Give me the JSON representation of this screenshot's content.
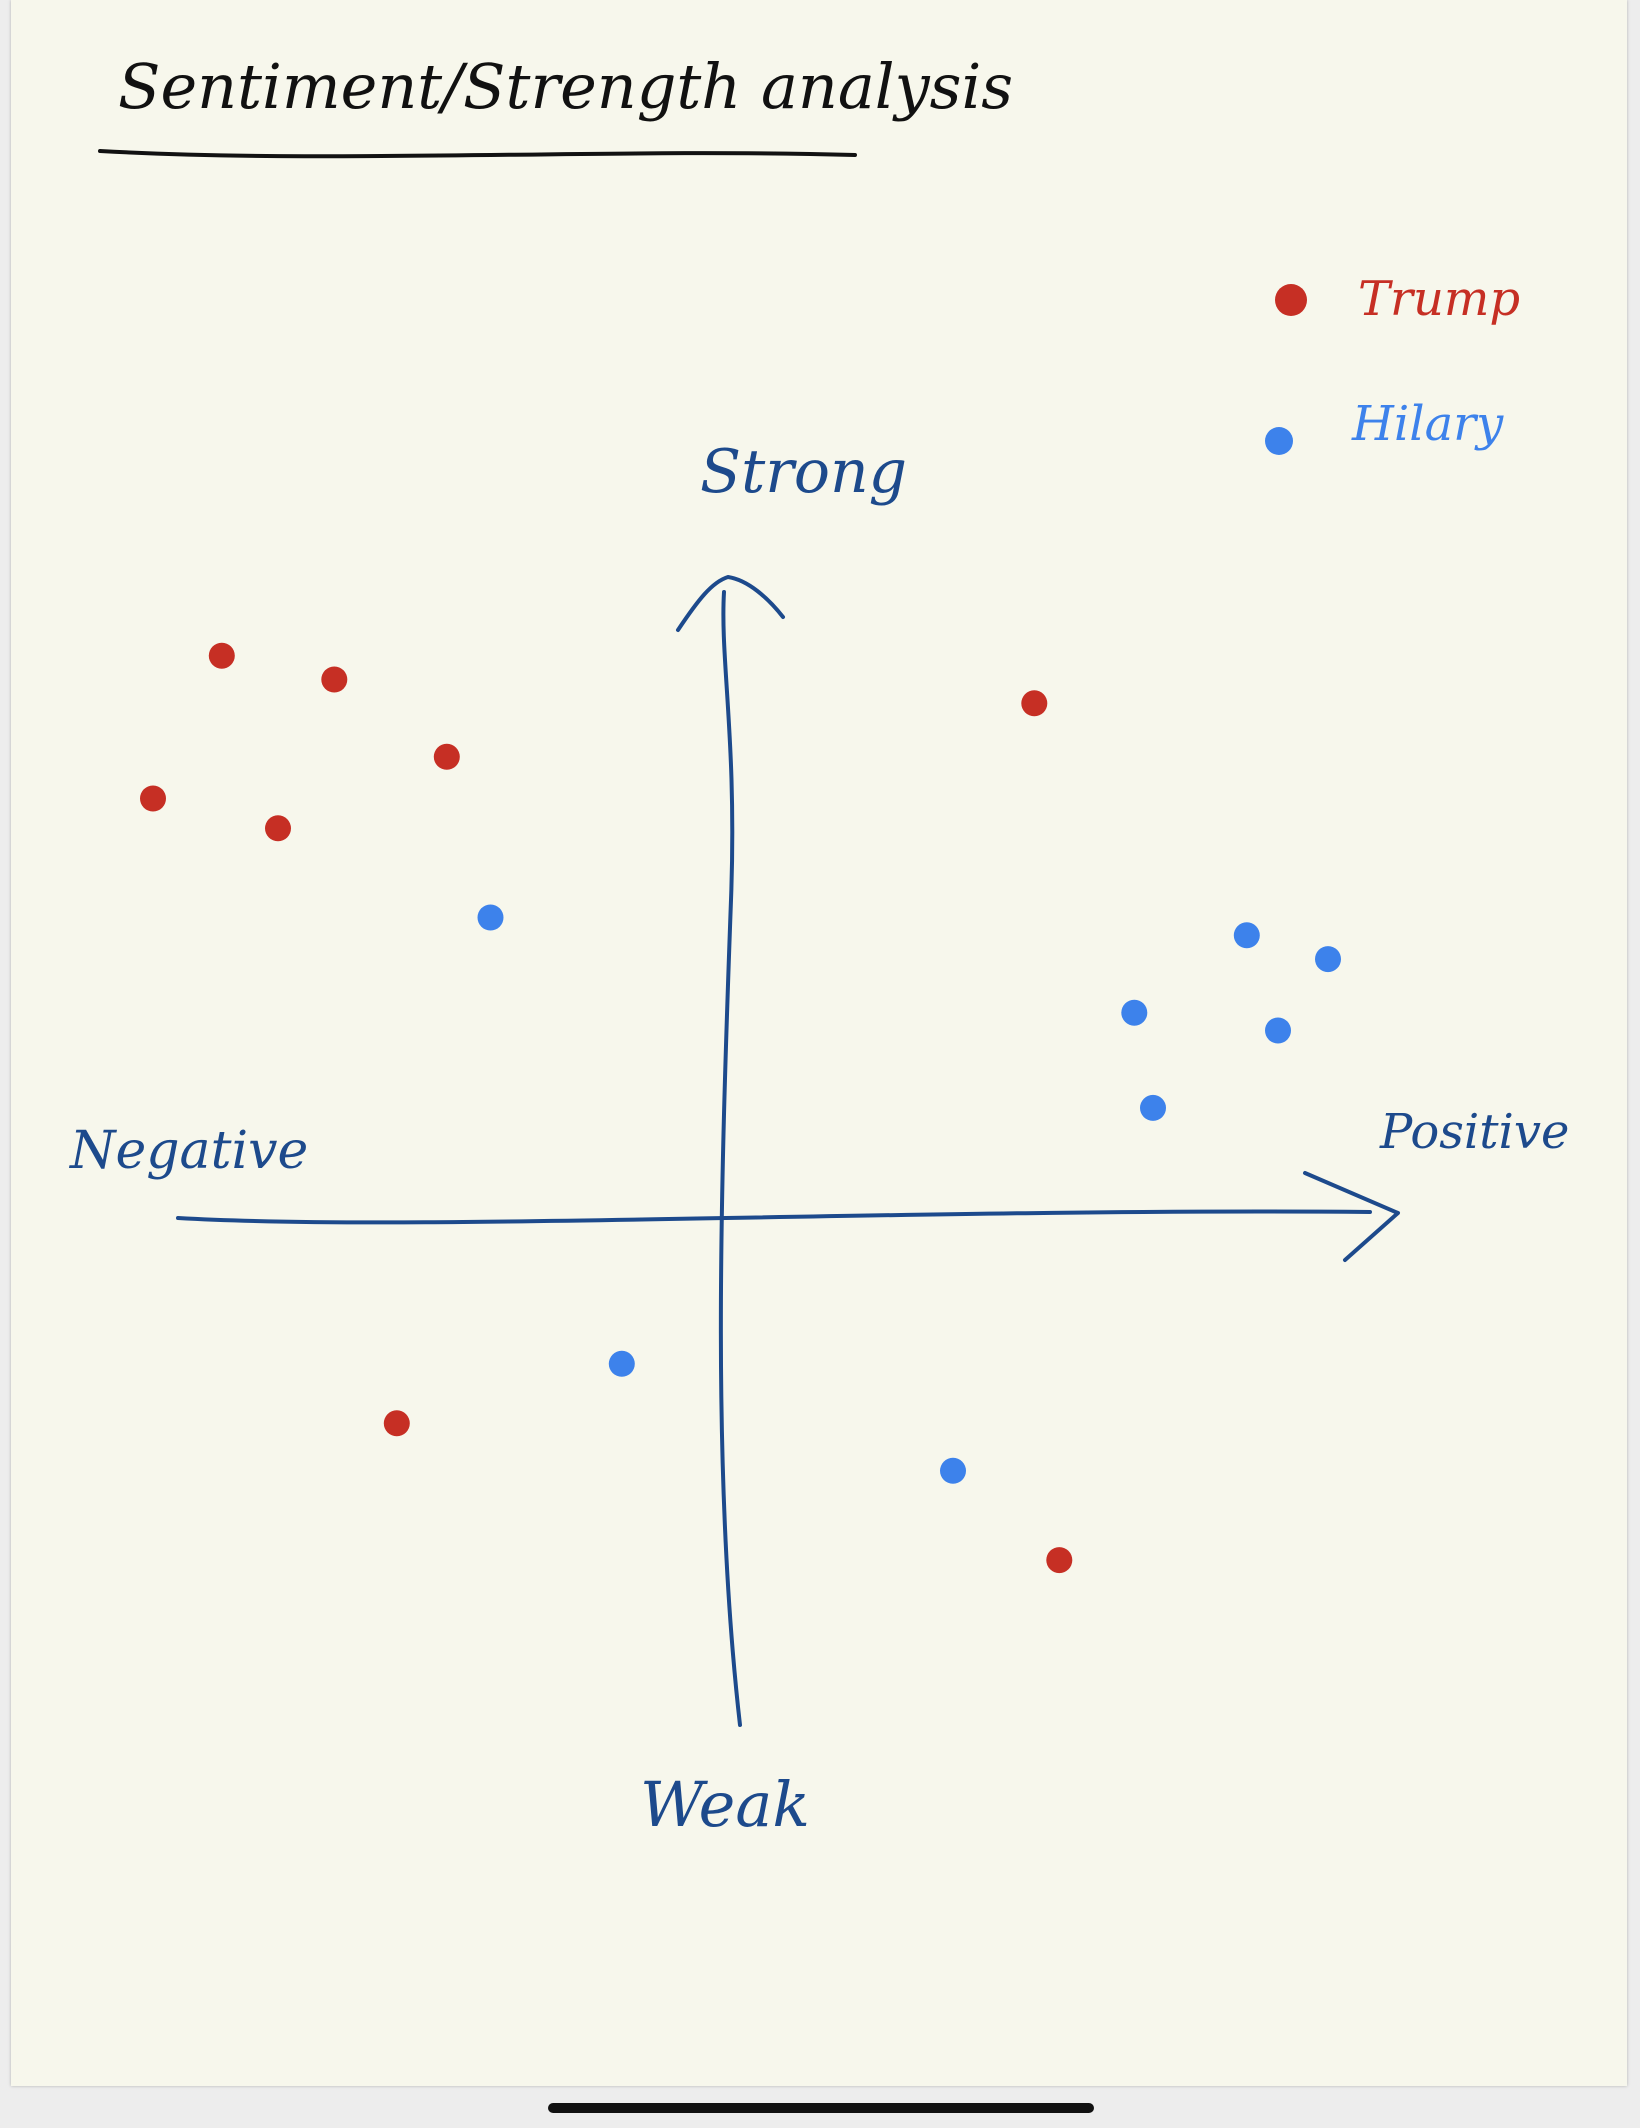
{
  "colors": {
    "title": "#111111",
    "axis": "#1d4a8c",
    "trump": "#c62f24",
    "hillary": "#3d82eb",
    "paper": "#f7f7ec"
  },
  "chart_data": {
    "type": "scatter",
    "title": "Sentiment/Strength analysis",
    "xlabel_negative": "Negative",
    "xlabel_positive": "Positive",
    "ylabel_positive": "Strong",
    "ylabel_negative": "Weak",
    "xlim": [
      -10,
      10
    ],
    "ylim": [
      -10,
      10
    ],
    "grid": false,
    "legend_position": "top-right",
    "series": [
      {
        "name": "Trump",
        "color": "#c62f24",
        "points": [
          {
            "x": -8.1,
            "y": 9.4
          },
          {
            "x": -6.3,
            "y": 9.0
          },
          {
            "x": -4.5,
            "y": 7.7
          },
          {
            "x": -9.2,
            "y": 7.0
          },
          {
            "x": -7.2,
            "y": 6.5
          },
          {
            "x": 4.9,
            "y": 8.6
          },
          {
            "x": -5.3,
            "y": -3.5
          },
          {
            "x": 5.3,
            "y": -5.8
          }
        ]
      },
      {
        "name": "Hilary",
        "color": "#3d82eb",
        "points": [
          {
            "x": -3.8,
            "y": 5.0
          },
          {
            "x": 8.3,
            "y": 4.7
          },
          {
            "x": 9.6,
            "y": 4.3
          },
          {
            "x": 6.5,
            "y": 3.4
          },
          {
            "x": 8.8,
            "y": 3.1
          },
          {
            "x": 6.8,
            "y": 1.8
          },
          {
            "x": -1.7,
            "y": -2.5
          },
          {
            "x": 3.6,
            "y": -4.3
          }
        ]
      }
    ]
  }
}
